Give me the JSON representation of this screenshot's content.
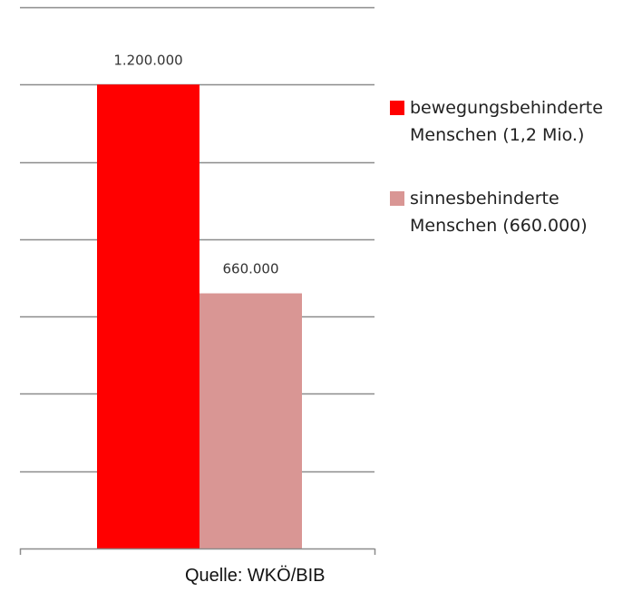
{
  "chart_data": {
    "type": "bar",
    "title": "",
    "xlabel": "",
    "ylabel": "",
    "ylim": [
      0,
      1400000
    ],
    "grid": true,
    "legend_placement": "right",
    "categories": [
      ""
    ],
    "series": [
      {
        "name": "bewegungsbehinderte\nMenschen (1,2 Mio.)",
        "values": [
          1200000
        ],
        "color": "#ff0000",
        "data_label": "1.200.000"
      },
      {
        "name": "sinnesbehinderte\nMenschen (660.000)",
        "values": [
          660000
        ],
        "color": "#d99694",
        "data_label": "660.000"
      }
    ]
  },
  "source_label": "Quelle: WKÖ/BIB"
}
